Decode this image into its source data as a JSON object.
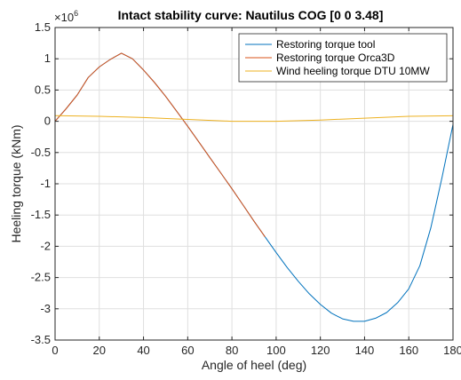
{
  "chart_data": {
    "type": "line",
    "title": "Intact stability curve: Nautilus COG [0 0 3.48]",
    "xlabel": "Angle of heel (deg)",
    "ylabel": "Heeling torque (kNm)",
    "exponent_label": "×10",
    "exponent_power": "6",
    "xlim": [
      0,
      180
    ],
    "ylim": [
      -3.5,
      1.5
    ],
    "y_scale_factor": 1000000,
    "xticks": [
      0,
      20,
      40,
      60,
      80,
      100,
      120,
      140,
      160,
      180
    ],
    "yticks": [
      1.5,
      1,
      0.5,
      0,
      -0.5,
      -1,
      -1.5,
      -2,
      -2.5,
      -3,
      -3.5
    ],
    "grid": true,
    "legend_position": "top-right",
    "series": [
      {
        "name": "Restoring torque tool",
        "color": "#0072BD",
        "x": [
          0,
          5,
          10,
          15,
          20,
          25,
          30,
          35,
          40,
          45,
          50,
          55,
          60,
          65,
          70,
          75,
          80,
          85,
          90,
          95,
          100,
          105,
          110,
          115,
          120,
          125,
          130,
          135,
          140,
          145,
          150,
          155,
          160,
          165,
          170,
          175,
          180
        ],
        "values": [
          0,
          0.2,
          0.42,
          0.7,
          0.87,
          0.99,
          1.09,
          1.0,
          0.82,
          0.62,
          0.4,
          0.16,
          -0.08,
          -0.33,
          -0.58,
          -0.83,
          -1.08,
          -1.34,
          -1.6,
          -1.85,
          -2.1,
          -2.34,
          -2.56,
          -2.76,
          -2.93,
          -3.07,
          -3.16,
          -3.2,
          -3.2,
          -3.15,
          -3.06,
          -2.9,
          -2.68,
          -2.31,
          -1.7,
          -0.9,
          -0.05
        ]
      },
      {
        "name": "Restoring torque Orca3D",
        "color": "#D95319",
        "x": [
          0,
          5,
          10,
          15,
          20,
          25,
          30,
          35,
          40,
          45,
          50,
          55,
          60,
          65,
          70,
          75,
          80,
          85,
          90,
          95
        ],
        "values": [
          0,
          0.2,
          0.42,
          0.7,
          0.87,
          0.99,
          1.09,
          1.0,
          0.82,
          0.62,
          0.4,
          0.16,
          -0.08,
          -0.33,
          -0.58,
          -0.83,
          -1.08,
          -1.34,
          -1.6,
          -1.85
        ]
      },
      {
        "name": "Wind heeling torque DTU 10MW",
        "color": "#EDB120",
        "x": [
          0,
          20,
          40,
          60,
          80,
          90,
          100,
          120,
          140,
          160,
          180
        ],
        "values": [
          0.09,
          0.08,
          0.06,
          0.03,
          0.0,
          0.0,
          0.0,
          0.02,
          0.05,
          0.08,
          0.09
        ]
      }
    ]
  }
}
